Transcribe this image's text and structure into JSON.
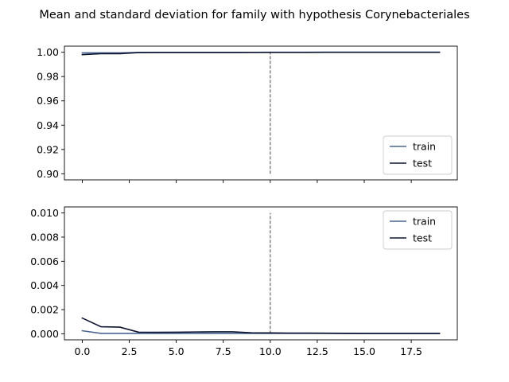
{
  "figure": {
    "title": "Mean and standard deviation for family with hypothesis Corynebacteriales"
  },
  "chart_data": [
    {
      "type": "line",
      "name": "mean",
      "x": [
        0,
        1,
        2,
        3,
        4,
        5,
        6,
        7,
        8,
        9,
        10,
        11,
        12,
        13,
        14,
        15,
        16,
        17,
        18,
        19
      ],
      "series": [
        {
          "name": "train",
          "color": "#4a6591",
          "values": [
            0.9995,
            0.9995,
            0.9995,
            0.9998,
            0.9999,
            0.9999,
            0.9999,
            0.9999,
            0.9999,
            0.9999,
            1.0,
            1.0,
            1.0,
            1.0,
            1.0,
            1.0,
            1.0,
            1.0,
            1.0,
            1.0
          ]
        },
        {
          "name": "test",
          "color": "#0d1530",
          "values": [
            0.998,
            0.9988,
            0.9988,
            0.9997,
            0.9998,
            0.9998,
            0.9998,
            0.9998,
            0.9998,
            0.9999,
            0.9999,
            0.9999,
            0.9999,
            1.0,
            1.0,
            1.0,
            1.0,
            1.0,
            1.0,
            1.0
          ]
        }
      ],
      "vline": {
        "x": 10,
        "y": [
          0.9,
          1.0
        ],
        "style": "dashed"
      },
      "xlim": [
        -0.95,
        19.95
      ],
      "ylim": [
        0.895,
        1.005
      ],
      "yticks": [
        0.9,
        0.92,
        0.94,
        0.96,
        0.98,
        1.0
      ],
      "ytick_labels": [
        "0.90",
        "0.92",
        "0.94",
        "0.96",
        "0.98",
        "1.00"
      ],
      "xticks": [
        0,
        2.5,
        5,
        7.5,
        10,
        12.5,
        15,
        17.5
      ],
      "show_xtick_labels": false,
      "legend": {
        "position": "lower-right",
        "labels": [
          "train",
          "test"
        ]
      },
      "grid": false
    },
    {
      "type": "line",
      "name": "std",
      "x": [
        0,
        1,
        2,
        3,
        4,
        5,
        6,
        7,
        8,
        9,
        10,
        11,
        12,
        13,
        14,
        15,
        16,
        17,
        18,
        19
      ],
      "series": [
        {
          "name": "train",
          "color": "#4a6591",
          "values": [
            0.00025,
            3e-05,
            3e-05,
            3e-05,
            3e-05,
            3e-05,
            3e-05,
            3e-05,
            3e-05,
            3e-05,
            3e-05,
            3e-05,
            3e-05,
            3e-05,
            2e-05,
            2e-05,
            2e-05,
            2e-05,
            2e-05,
            2e-05
          ]
        },
        {
          "name": "test",
          "color": "#0d1530",
          "values": [
            0.0013,
            0.00058,
            0.00055,
            0.00013,
            0.00012,
            0.00013,
            0.00015,
            0.00016,
            0.00016,
            8e-05,
            7e-05,
            6e-05,
            6e-05,
            5e-05,
            4e-05,
            3e-05,
            3e-05,
            3e-05,
            3e-05,
            3e-05
          ]
        }
      ],
      "vline": {
        "x": 10,
        "y": [
          0.0,
          0.01
        ],
        "style": "dashed"
      },
      "xlim": [
        -0.95,
        19.95
      ],
      "ylim": [
        -0.0005,
        0.0105
      ],
      "yticks": [
        0.0,
        0.002,
        0.004,
        0.006,
        0.008,
        0.01
      ],
      "ytick_labels": [
        "0.000",
        "0.002",
        "0.004",
        "0.006",
        "0.008",
        "0.010"
      ],
      "xticks": [
        0,
        2.5,
        5,
        7.5,
        10,
        12.5,
        15,
        17.5
      ],
      "xtick_labels": [
        "0.0",
        "2.5",
        "5.0",
        "7.5",
        "10.0",
        "12.5",
        "15.0",
        "17.5"
      ],
      "show_xtick_labels": true,
      "legend": {
        "position": "upper-right",
        "labels": [
          "train",
          "test"
        ]
      },
      "grid": false
    }
  ]
}
